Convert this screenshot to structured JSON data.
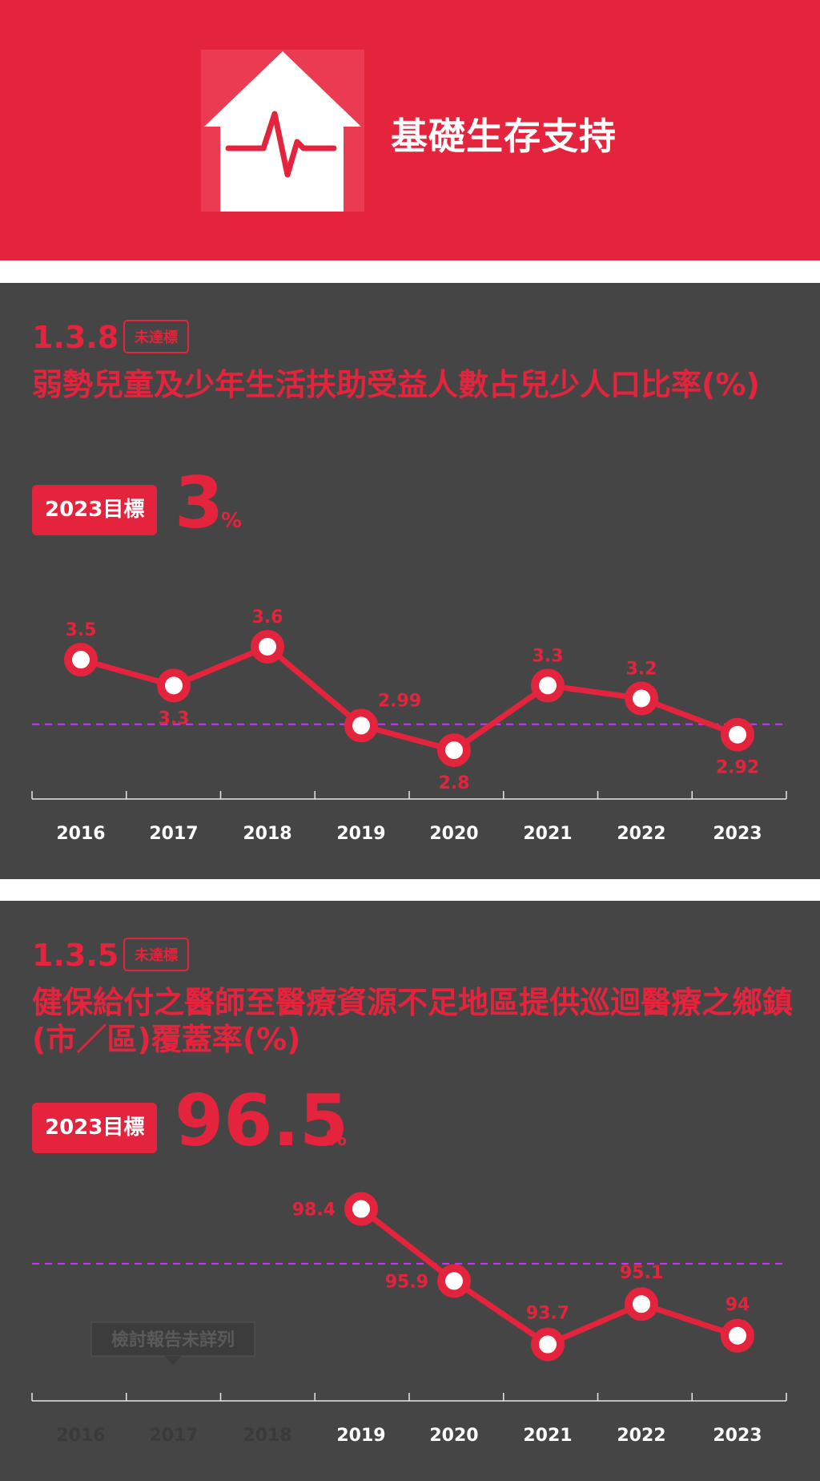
{
  "header": {
    "title": "基礎生存支持",
    "icon": "house-heartbeat-icon"
  },
  "colors": {
    "brand_red": "#e4233c",
    "panel_bg": "#454545",
    "target_line": "#cc33ff",
    "muted": "#3a3a3a"
  },
  "indicators": [
    {
      "code": "1.3.8",
      "status": "未達標",
      "title": "弱勢兒童及少年生活扶助受益人數占兒少人口比率(%)",
      "target_label": "2023目標",
      "target_value": "3",
      "target_unit": "%"
    },
    {
      "code": "1.3.5",
      "status": "未達標",
      "title": "健保給付之醫師至醫療資源不足地區提供巡迴醫療之鄉鎮(市／區)覆蓋率(%)",
      "target_label": "2023目標",
      "target_value": "96.5",
      "target_unit": "%",
      "tooltip": "檢討報告未詳列"
    }
  ],
  "chart_data": [
    {
      "type": "line",
      "x": [
        "2016",
        "2017",
        "2018",
        "2019",
        "2020",
        "2021",
        "2022",
        "2023"
      ],
      "values": [
        3.5,
        3.3,
        3.6,
        2.99,
        2.8,
        3.3,
        3.2,
        2.92
      ],
      "value_labels": [
        "3.5",
        "3.3",
        "3.6",
        "2.99",
        "2.8",
        "3.3",
        "3.2",
        "2.92"
      ],
      "target": 3,
      "ylim": [
        2.5,
        3.8
      ]
    },
    {
      "type": "line",
      "x": [
        "2016",
        "2017",
        "2018",
        "2019",
        "2020",
        "2021",
        "2022",
        "2023"
      ],
      "values": [
        null,
        null,
        null,
        98.4,
        95.9,
        93.7,
        95.1,
        94
      ],
      "value_labels": [
        "",
        "",
        "",
        "98.4",
        "95.9",
        "93.7",
        "95.1",
        "94"
      ],
      "target": 96.5,
      "ylim": [
        93,
        99
      ]
    }
  ]
}
